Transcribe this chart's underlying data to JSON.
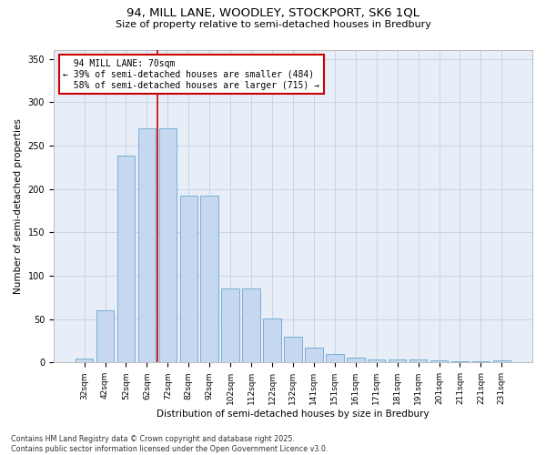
{
  "title_line1": "94, MILL LANE, WOODLEY, STOCKPORT, SK6 1QL",
  "title_line2": "Size of property relative to semi-detached houses in Bredbury",
  "xlabel": "Distribution of semi-detached houses by size in Bredbury",
  "ylabel": "Number of semi-detached properties",
  "categories": [
    "32sqm",
    "42sqm",
    "52sqm",
    "62sqm",
    "72sqm",
    "82sqm",
    "92sqm",
    "102sqm",
    "112sqm",
    "122sqm",
    "132sqm",
    "141sqm",
    "151sqm",
    "161sqm",
    "171sqm",
    "181sqm",
    "191sqm",
    "201sqm",
    "211sqm",
    "221sqm",
    "231sqm"
  ],
  "values": [
    5,
    60,
    238,
    270,
    270,
    192,
    192,
    85,
    85,
    51,
    30,
    17,
    10,
    6,
    4,
    3,
    3,
    2,
    1,
    1,
    2
  ],
  "bar_color": "#c5d8f0",
  "bar_edge_color": "#7aafd4",
  "vline_color": "#cc0000",
  "annotation_box_edge": "#cc0000",
  "property_label": "94 MILL LANE: 70sqm",
  "pct_smaller": 39,
  "pct_smaller_count": 484,
  "pct_larger": 58,
  "pct_larger_count": 715,
  "ylim": [
    0,
    360
  ],
  "yticks": [
    0,
    50,
    100,
    150,
    200,
    250,
    300,
    350
  ],
  "grid_color": "#c8d4e8",
  "bg_color": "#e8eef8",
  "footer_line1": "Contains HM Land Registry data © Crown copyright and database right 2025.",
  "footer_line2": "Contains public sector information licensed under the Open Government Licence v3.0."
}
